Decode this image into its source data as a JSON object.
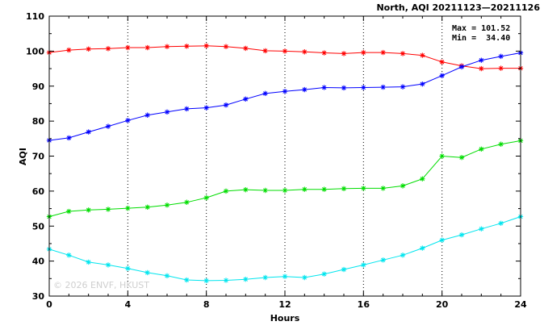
{
  "chart_data": {
    "type": "line",
    "title": "North, AQI 20211123—20211126",
    "xlabel": "Hours",
    "ylabel": "AQI",
    "xlim": [
      0,
      24
    ],
    "ylim": [
      30,
      110
    ],
    "xticks": [
      0,
      4,
      8,
      12,
      16,
      20,
      24
    ],
    "yticks": [
      30,
      40,
      50,
      60,
      70,
      80,
      90,
      100,
      110
    ],
    "grid": true,
    "stats": {
      "max_label": "Max = 101.52",
      "min_label": "Min =  34.40"
    },
    "watermark": "© 2026  ENVF, HKUST",
    "x": [
      0,
      1,
      2,
      3,
      4,
      5,
      6,
      7,
      8,
      9,
      10,
      11,
      12,
      13,
      14,
      15,
      16,
      17,
      18,
      19,
      20,
      21,
      22,
      23,
      24
    ],
    "series": [
      {
        "color": "#ff0000",
        "values": [
          99.6,
          100.3,
          100.6,
          100.7,
          101.0,
          101.0,
          101.3,
          101.4,
          101.52,
          101.3,
          100.8,
          100.1,
          100.0,
          99.8,
          99.5,
          99.3,
          99.6,
          99.6,
          99.3,
          98.8,
          96.9,
          95.8,
          95.0,
          95.1,
          95.1
        ]
      },
      {
        "color": "#0000ff",
        "values": [
          74.5,
          75.2,
          76.9,
          78.5,
          80.2,
          81.7,
          82.6,
          83.5,
          83.8,
          84.6,
          86.3,
          87.9,
          88.5,
          89.0,
          89.6,
          89.5,
          89.6,
          89.7,
          89.8,
          90.6,
          93.0,
          95.5,
          97.4,
          98.5,
          99.5
        ]
      },
      {
        "color": "#00dd00",
        "values": [
          52.7,
          54.2,
          54.6,
          54.8,
          55.1,
          55.4,
          56.0,
          56.8,
          58.1,
          60.0,
          60.4,
          60.2,
          60.2,
          60.5,
          60.5,
          60.7,
          60.8,
          60.8,
          61.5,
          63.5,
          70.0,
          69.6,
          72.0,
          73.4,
          74.4
        ]
      },
      {
        "color": "#00e5ee",
        "values": [
          43.4,
          41.7,
          39.7,
          38.9,
          37.9,
          36.7,
          35.8,
          34.6,
          34.4,
          34.5,
          34.8,
          35.3,
          35.6,
          35.3,
          36.3,
          37.6,
          38.9,
          40.3,
          41.7,
          43.7,
          46.0,
          47.5,
          49.2,
          50.8,
          52.7
        ]
      }
    ]
  }
}
